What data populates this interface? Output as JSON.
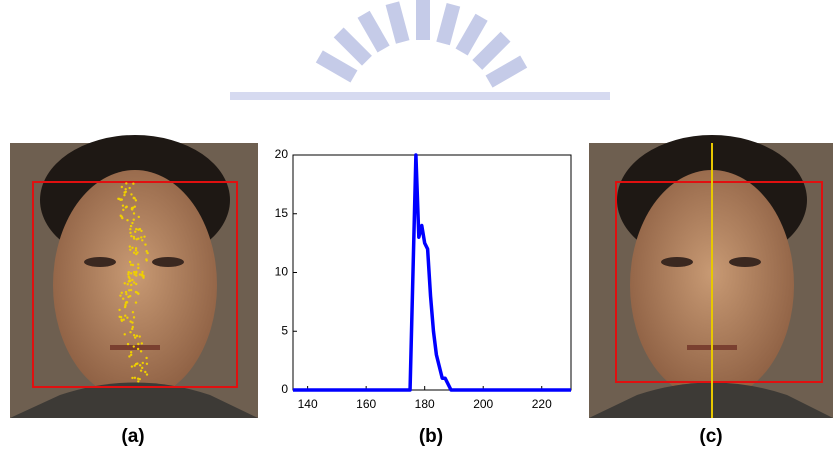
{
  "captions": [
    "(a)",
    "(b)",
    "(c)"
  ],
  "chart_data": {
    "type": "line",
    "x": [
      135,
      175,
      177,
      178,
      179,
      180,
      181,
      182,
      183,
      184,
      185,
      186,
      187,
      188,
      189,
      190,
      230
    ],
    "series": [
      {
        "color": "#0000ff",
        "values": [
          0,
          0,
          20,
          13,
          14,
          12.5,
          12,
          8,
          5,
          3,
          2,
          1,
          1,
          0.5,
          0,
          0,
          0
        ]
      }
    ],
    "xlim": [
      135,
      230
    ],
    "xticks": [
      140,
      160,
      180,
      200,
      220
    ],
    "ylim": [
      0,
      20
    ],
    "yticks": [
      0,
      5,
      10,
      15,
      20
    ]
  }
}
